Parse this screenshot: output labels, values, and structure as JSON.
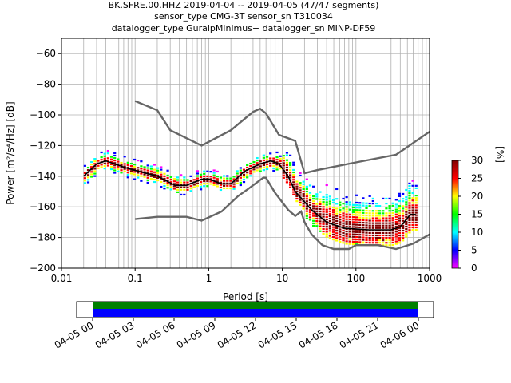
{
  "header": {
    "line1": "BK.SFRE.00.HHZ   2019-04-04 -- 2019-04-05  (47/47 segments)",
    "line2": "sensor_type CMG-3T sensor_sn T310034",
    "line3": "datalogger_type GuralpMinimus+ datalogger_sn MINP-DF59"
  },
  "chart_data": {
    "type": "heatmap",
    "xlabel": "Period [s]",
    "ylabel": "Power [m²/s⁴/Hz] [dB]",
    "xscale": "log",
    "xlim": [
      0.01,
      1000
    ],
    "ylim": [
      -200,
      -50
    ],
    "xticks": [
      {
        "value": 0.01,
        "label": "0.01"
      },
      {
        "value": 0.1,
        "label": "0.1"
      },
      {
        "value": 1,
        "label": "1"
      },
      {
        "value": 10,
        "label": "10"
      },
      {
        "value": 100,
        "label": "100"
      },
      {
        "value": 1000,
        "label": "1000"
      }
    ],
    "yticks": [
      -60,
      -80,
      -100,
      -120,
      -140,
      -160,
      -180,
      -200
    ],
    "grid": true,
    "colorbar": {
      "label": "[%]",
      "min": 0,
      "max": 30,
      "ticks": [
        0,
        5,
        10,
        15,
        20,
        25,
        30
      ],
      "colors": [
        "#ff00ff",
        "#0000ff",
        "#00ffff",
        "#00ff00",
        "#ffff00",
        "#ff0000",
        "#800000"
      ]
    },
    "series": [
      {
        "name": "",
        "color": "#666666",
        "points": [
          [
            0.1,
            -91
          ],
          [
            0.2,
            -97
          ],
          [
            0.3,
            -110
          ],
          [
            0.8,
            -120
          ],
          [
            2,
            -110
          ],
          [
            4,
            -98
          ],
          [
            5,
            -96
          ],
          [
            6,
            -99
          ],
          [
            9,
            -113
          ],
          [
            15,
            -117
          ],
          [
            20,
            -138
          ],
          [
            30,
            -136
          ],
          [
            100,
            -131
          ],
          [
            350,
            -126
          ],
          [
            1000,
            -111
          ]
        ]
      },
      {
        "name": "",
        "color": "#666666",
        "points": [
          [
            0.1,
            -168
          ],
          [
            0.2,
            -166.5
          ],
          [
            0.5,
            -166.5
          ],
          [
            0.8,
            -169
          ],
          [
            1.5,
            -163
          ],
          [
            2.5,
            -153
          ],
          [
            3.5,
            -148
          ],
          [
            5.5,
            -141
          ],
          [
            6,
            -141
          ],
          [
            8,
            -151
          ],
          [
            12,
            -162
          ],
          [
            15,
            -166
          ],
          [
            18,
            -163
          ],
          [
            20,
            -170
          ],
          [
            25,
            -178
          ],
          [
            35,
            -185
          ],
          [
            50,
            -187.5
          ],
          [
            80,
            -187.5
          ],
          [
            100,
            -185
          ],
          [
            200,
            -185
          ],
          [
            350,
            -187.5
          ],
          [
            600,
            -184
          ],
          [
            1000,
            -178
          ]
        ]
      },
      {
        "name": "",
        "color": "#000000",
        "points": [
          [
            0.02,
            -140
          ],
          [
            0.03,
            -132
          ],
          [
            0.04,
            -130
          ],
          [
            0.08,
            -135
          ],
          [
            0.2,
            -140
          ],
          [
            0.35,
            -146
          ],
          [
            0.5,
            -146
          ],
          [
            0.8,
            -142
          ],
          [
            1.0,
            -142
          ],
          [
            1.5,
            -145
          ],
          [
            2.0,
            -145
          ],
          [
            3.0,
            -137
          ],
          [
            5.0,
            -132
          ],
          [
            7.0,
            -130
          ],
          [
            9.0,
            -132
          ],
          [
            12,
            -140
          ],
          [
            15,
            -150
          ],
          [
            25,
            -162
          ],
          [
            40,
            -170
          ],
          [
            70,
            -174
          ],
          [
            150,
            -175
          ],
          [
            300,
            -175
          ],
          [
            400,
            -173
          ],
          [
            550,
            -165
          ],
          [
            650,
            -165
          ]
        ]
      }
    ],
    "timeline": {
      "ticks": [
        "04-05 00",
        "04-05 03",
        "04-05 06",
        "04-05 09",
        "04-05 12",
        "04-05 15",
        "04-05 18",
        "04-05 21",
        "04-06 00"
      ],
      "bands": [
        {
          "name": "",
          "color": "#008000"
        },
        {
          "name": "",
          "color": "#0000ff"
        }
      ]
    }
  }
}
